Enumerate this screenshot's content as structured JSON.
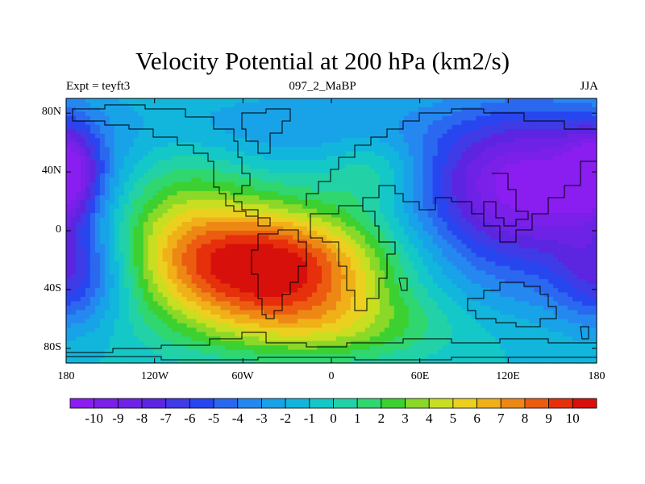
{
  "figure": {
    "title": "Velocity Potential at 200 hPa (km2/s)",
    "left_label": "Expt = teyft3",
    "center_label": "097_2_MaBP",
    "right_label": "JJA"
  },
  "axes": {
    "y_ticks": [
      "80N",
      "40N",
      "0",
      "40S",
      "80S"
    ],
    "x_ticks": [
      "180",
      "120W",
      "60W",
      "0",
      "60E",
      "120E",
      "180"
    ],
    "lon_range": [
      -180,
      180
    ],
    "lat_range": [
      -90,
      90
    ]
  },
  "colorbar": {
    "labels": [
      "-10",
      "-9",
      "-8",
      "-7",
      "-6",
      "-5",
      "-4",
      "-3",
      "-2",
      "-1",
      "0",
      "1",
      "2",
      "3",
      "4",
      "5",
      "6",
      "7",
      "8",
      "9",
      "10"
    ],
    "colors": [
      "#8a1ef0",
      "#7a20e8",
      "#6e22e6",
      "#5c25e0",
      "#3f3be6",
      "#2846f0",
      "#2a68f0",
      "#2488f0",
      "#18a2e8",
      "#12b6dd",
      "#14c8c8",
      "#22d2a6",
      "#30d66e",
      "#3cd030",
      "#8ad828",
      "#c8de20",
      "#ecd020",
      "#f0b018",
      "#ee8814",
      "#ec5c10",
      "#e6300c",
      "#d8100c"
    ]
  },
  "chart_data": {
    "type": "heatmap",
    "title": "Velocity Potential at 200 hPa (km2/s)",
    "units": "km2/s",
    "x_axis": "longitude",
    "y_axis": "latitude",
    "x_range": [
      -180,
      180
    ],
    "y_range": [
      -90,
      90
    ],
    "levels": [
      -10,
      -9,
      -8,
      -7,
      -6,
      -5,
      -4,
      -3,
      -2,
      -1,
      0,
      1,
      2,
      3,
      4,
      5,
      6,
      7,
      8,
      9,
      10
    ],
    "centers": [
      {
        "lon": -40,
        "lat": -25,
        "value": 10.5,
        "lon_scale": 55,
        "lat_scale": 28
      },
      {
        "lon": -115,
        "lat": 5,
        "value": 3.5,
        "lon_scale": 45,
        "lat_scale": 40
      },
      {
        "lon": 0,
        "lat": -65,
        "value": 2.5,
        "lon_scale": 60,
        "lat_scale": 18
      },
      {
        "lon": 135,
        "lat": 30,
        "value": -11.0,
        "lon_scale": 55,
        "lat_scale": 38
      },
      {
        "lon": 110,
        "lat": -40,
        "value": -2.0,
        "lon_scale": 50,
        "lat_scale": 25
      },
      {
        "lon": -180,
        "lat": 40,
        "value": -7.0,
        "lon_scale": 15,
        "lat_scale": 20
      },
      {
        "lon": -160,
        "lat": -30,
        "value": -4.0,
        "lon_scale": 30,
        "lat_scale": 25
      },
      {
        "lon": 180,
        "lat": -30,
        "value": -4.0,
        "lon_scale": 20,
        "lat_scale": 25
      },
      {
        "lon": -40,
        "lat": 70,
        "value": -3.0,
        "lon_scale": 70,
        "lat_scale": 18
      },
      {
        "lon": 30,
        "lat": 40,
        "value": 1.5,
        "lon_scale": 25,
        "lat_scale": 18
      }
    ],
    "background_value": -1.0
  }
}
